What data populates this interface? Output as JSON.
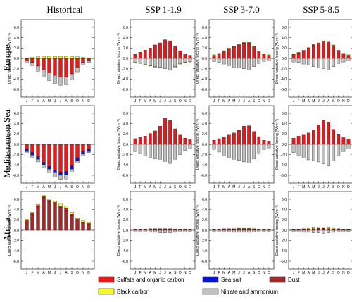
{
  "columns": [
    "Historical",
    "SSP 1-1.9",
    "SSP 3-7.0",
    "SSP 5-8.5"
  ],
  "rows": [
    "Europe",
    "Mediterranean Sea",
    "Africa"
  ],
  "y_axis_label": "Direct radiative forcing (W m⁻²)",
  "y_ticks": [
    "6.0",
    "4.0",
    "2.0",
    "0.0",
    "-2.0",
    "-4.0",
    "-6.0"
  ],
  "month_labels": [
    "J",
    "F",
    "M",
    "A",
    "M",
    "J",
    "J",
    "A",
    "S",
    "O",
    "N",
    "D"
  ],
  "legend": [
    {
      "label": "Sulfate and organic carbon",
      "color": "#e41a1c"
    },
    {
      "label": "Sea salt",
      "color": "#0a14d0"
    },
    {
      "label": "Dust",
      "color": "#9e2a2b"
    },
    {
      "label": "Black carbon",
      "color": "#f7f72a"
    },
    {
      "label": "Nitrate and ammonium",
      "color": "#c0c0c0"
    }
  ],
  "chart_data": {
    "type": "bar",
    "stacked": true,
    "categories": [
      "J",
      "F",
      "M",
      "A",
      "M",
      "J",
      "J",
      "A",
      "S",
      "O",
      "N",
      "D"
    ],
    "ylim": [
      -7.5,
      7.5
    ],
    "panels": [
      {
        "row": "Europe",
        "column": "Historical",
        "series": [
          {
            "name": "Sulfate and organic carbon",
            "values": [
              -0.5,
              -0.8,
              -1.5,
              -2.3,
              -2.8,
              -3.3,
              -3.6,
              -3.6,
              -3.0,
              -1.8,
              -0.8,
              -0.4
            ]
          },
          {
            "name": "Nitrate and ammonium",
            "values": [
              -0.4,
              -0.6,
              -1.0,
              -1.3,
              -1.5,
              -1.6,
              -1.6,
              -1.5,
              -1.2,
              -0.8,
              -0.5,
              -0.4
            ]
          },
          {
            "name": "Black carbon",
            "values": [
              0.1,
              0.2,
              0.3,
              0.4,
              0.4,
              0.4,
              0.4,
              0.4,
              0.4,
              0.3,
              0.2,
              0.1
            ]
          }
        ]
      },
      {
        "row": "Europe",
        "column": "SSP 1-1.9",
        "series": [
          {
            "name": "Sulfate and organic carbon",
            "values": [
              0.8,
              1.2,
              1.6,
              2.0,
              2.6,
              3.0,
              3.6,
              3.4,
              2.4,
              1.5,
              0.9,
              0.6
            ]
          },
          {
            "name": "Nitrate and ammonium",
            "values": [
              -0.8,
              -0.9,
              -1.2,
              -1.4,
              -1.6,
              -1.7,
              -1.9,
              -2.2,
              -1.6,
              -1.0,
              -0.7,
              -0.6
            ]
          },
          {
            "name": "Black carbon",
            "values": [
              -0.1,
              -0.1,
              -0.1,
              -0.1,
              -0.1,
              -0.1,
              -0.1,
              -0.1,
              -0.1,
              -0.1,
              -0.1,
              -0.1
            ]
          }
        ]
      },
      {
        "row": "Europe",
        "column": "SSP 3-7.0",
        "series": [
          {
            "name": "Sulfate and organic carbon",
            "values": [
              0.6,
              0.9,
              1.4,
              1.9,
              2.3,
              2.6,
              3.0,
              3.0,
              2.2,
              1.3,
              0.8,
              0.6
            ]
          },
          {
            "name": "Nitrate and ammonium",
            "values": [
              -0.6,
              -0.8,
              -1.1,
              -1.4,
              -1.7,
              -1.8,
              -2.0,
              -2.2,
              -1.6,
              -1.0,
              -0.6,
              -0.5
            ]
          },
          {
            "name": "Black carbon",
            "values": [
              0.1,
              0.1,
              0.1,
              0.1,
              0.1,
              0.1,
              0.1,
              0.1,
              0.1,
              0.1,
              0.1,
              0.1
            ]
          }
        ]
      },
      {
        "row": "Europe",
        "column": "SSP 5-8.5",
        "series": [
          {
            "name": "Sulfate and organic carbon",
            "values": [
              0.8,
              1.1,
              1.5,
              2.0,
              2.6,
              2.9,
              3.3,
              3.2,
              2.5,
              1.5,
              0.9,
              0.6
            ]
          },
          {
            "name": "Nitrate and ammonium",
            "values": [
              -0.7,
              -0.8,
              -1.1,
              -1.3,
              -1.6,
              -1.8,
              -2.0,
              -2.1,
              -1.6,
              -1.0,
              -0.7,
              -0.5
            ]
          },
          {
            "name": "Black carbon",
            "values": [
              0.1,
              0.1,
              0.1,
              0.1,
              0.1,
              0.1,
              0.1,
              0.1,
              0.1,
              0.1,
              0.1,
              0.1
            ]
          }
        ]
      },
      {
        "row": "Mediterranean Sea",
        "column": "Historical",
        "series": [
          {
            "name": "Sulfate and organic carbon",
            "values": [
              -1.0,
              -1.6,
              -2.4,
              -3.5,
              -4.3,
              -5.0,
              -5.5,
              -5.3,
              -4.2,
              -2.6,
              -1.4,
              -1.0
            ]
          },
          {
            "name": "Sea salt",
            "values": [
              -0.4,
              -0.5,
              -0.5,
              -0.5,
              -0.5,
              -0.5,
              -0.5,
              -0.6,
              -0.6,
              -0.6,
              -0.5,
              -0.4
            ]
          },
          {
            "name": "Nitrate and ammonium",
            "values": [
              -0.3,
              -0.4,
              -0.5,
              -0.6,
              -0.7,
              -0.8,
              -0.8,
              -0.8,
              -0.6,
              -0.4,
              -0.3,
              -0.2
            ]
          }
        ]
      },
      {
        "row": "Mediterranean Sea",
        "column": "SSP 1-1.9",
        "series": [
          {
            "name": "Sulfate and organic carbon",
            "values": [
              1.1,
              1.4,
              1.6,
              2.1,
              2.6,
              3.5,
              5.0,
              4.6,
              3.0,
              1.8,
              1.2,
              0.9
            ]
          },
          {
            "name": "Nitrate and ammonium",
            "values": [
              -1.4,
              -1.8,
              -2.3,
              -2.6,
              -2.8,
              -2.9,
              -3.3,
              -3.7,
              -2.9,
              -2.0,
              -1.2,
              -0.9
            ]
          }
        ]
      },
      {
        "row": "Mediterranean Sea",
        "column": "SSP 3-7.0",
        "series": [
          {
            "name": "Sulfate and organic carbon",
            "values": [
              0.8,
              1.1,
              1.4,
              1.8,
              2.2,
              2.7,
              3.5,
              3.6,
              2.5,
              1.5,
              0.8,
              0.6
            ]
          },
          {
            "name": "Nitrate and ammonium",
            "values": [
              -1.0,
              -1.5,
              -2.2,
              -2.6,
              -2.9,
              -3.1,
              -3.4,
              -3.6,
              -2.8,
              -1.8,
              -1.0,
              -0.7
            ]
          }
        ]
      },
      {
        "row": "Mediterranean Sea",
        "column": "SSP 5-8.5",
        "series": [
          {
            "name": "Sulfate and organic carbon",
            "values": [
              1.2,
              1.6,
              1.8,
              2.2,
              2.8,
              3.8,
              4.6,
              4.2,
              2.9,
              1.9,
              1.3,
              1.0
            ]
          },
          {
            "name": "Nitrate and ammonium",
            "values": [
              -1.6,
              -2.2,
              -2.7,
              -3.0,
              -3.2,
              -3.4,
              -3.8,
              -4.2,
              -3.2,
              -2.2,
              -1.4,
              -0.9
            ]
          }
        ]
      },
      {
        "row": "Africa",
        "column": "Historical",
        "series": [
          {
            "name": "Dust",
            "values": [
              1.6,
              3.0,
              4.6,
              6.3,
              5.6,
              5.2,
              4.4,
              3.8,
              2.8,
              2.0,
              1.4,
              1.1
            ]
          },
          {
            "name": "Sulfate and organic carbon",
            "values": [
              0.3,
              0.3,
              0.2,
              0.2,
              0.2,
              0.2,
              0.3,
              0.4,
              0.3,
              0.2,
              0.2,
              0.2
            ]
          },
          {
            "name": "Black carbon",
            "values": [
              0.2,
              0.2,
              0.2,
              0.2,
              0.2,
              0.3,
              0.5,
              0.5,
              0.4,
              0.2,
              0.2,
              0.2
            ]
          }
        ]
      },
      {
        "row": "Africa",
        "column": "SSP 1-1.9",
        "series": [
          {
            "name": "Dust",
            "values": [
              0.2,
              0.2,
              0.2,
              0.3,
              0.3,
              0.3,
              0.3,
              0.3,
              0.2,
              0.2,
              0.2,
              0.2
            ]
          },
          {
            "name": "Nitrate and ammonium",
            "values": [
              -0.3,
              -0.3,
              -0.3,
              -0.4,
              -0.4,
              -0.5,
              -0.5,
              -0.5,
              -0.4,
              -0.3,
              -0.3,
              -0.2
            ]
          }
        ]
      },
      {
        "row": "Africa",
        "column": "SSP 3-7.0",
        "series": [
          {
            "name": "Dust",
            "values": [
              0.1,
              0.1,
              0.2,
              0.2,
              0.2,
              0.3,
              0.3,
              0.3,
              0.2,
              0.1,
              0.1,
              0.1
            ]
          },
          {
            "name": "Black carbon",
            "values": [
              0.1,
              0.1,
              0.1,
              0.1,
              0.1,
              0.1,
              0.1,
              0.1,
              0.1,
              0.1,
              0.1,
              0.1
            ]
          },
          {
            "name": "Nitrate and ammonium",
            "values": [
              -0.2,
              -0.3,
              -0.3,
              -0.3,
              -0.4,
              -0.4,
              -0.4,
              -0.4,
              -0.3,
              -0.3,
              -0.2,
              -0.2
            ]
          }
        ]
      },
      {
        "row": "Africa",
        "column": "SSP 5-8.5",
        "series": [
          {
            "name": "Dust",
            "values": [
              0.1,
              0.1,
              0.2,
              0.2,
              0.3,
              0.4,
              0.4,
              0.3,
              0.2,
              0.2,
              0.1,
              0.1
            ]
          },
          {
            "name": "Black carbon",
            "values": [
              0.1,
              0.1,
              0.1,
              0.2,
              0.2,
              0.2,
              0.2,
              0.2,
              0.2,
              0.1,
              0.1,
              0.1
            ]
          },
          {
            "name": "Nitrate and ammonium",
            "values": [
              -0.3,
              -0.3,
              -0.4,
              -0.4,
              -0.5,
              -0.5,
              -0.6,
              -0.5,
              -0.4,
              -0.3,
              -0.3,
              -0.2
            ]
          }
        ]
      }
    ]
  }
}
